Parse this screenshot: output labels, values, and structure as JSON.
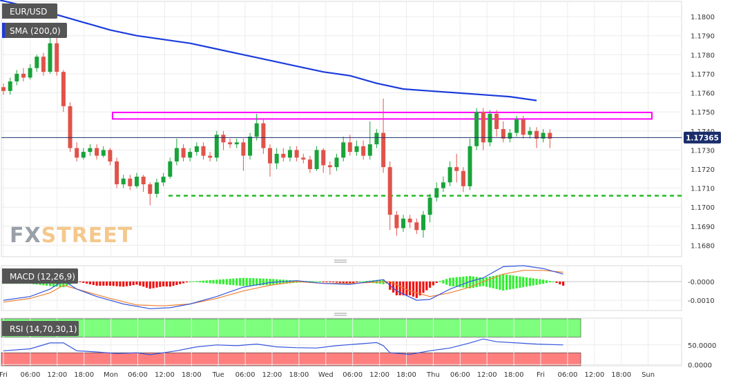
{
  "symbol_label": "EUR/USD",
  "colors": {
    "up": "#19a33a",
    "down": "#e0534a",
    "sma": "#1a3bdc",
    "resistance": "#ff00ff",
    "support": "#22bb22",
    "macd_line": "#3355dd",
    "signal_line": "#f08030",
    "hist_pos": "#33ee33",
    "hist_neg": "#ee1111",
    "rsi_line": "#3355dd",
    "rsi_overbought": "#7dff7d",
    "rsi_oversold": "#ff7f7f",
    "price_badge": "#1a2d6b"
  },
  "watermark": {
    "fx": "FX",
    "street": "STREET"
  },
  "chart_data": [
    {
      "name": "price",
      "type": "candlestick",
      "label": "SMA (200,0)",
      "y_ticks": [
        "1.1800",
        "1.1790",
        "1.1780",
        "1.1770",
        "1.1760",
        "1.1750",
        "1.1740",
        "1.1730",
        "1.1720",
        "1.1710",
        "1.1700",
        "1.1690",
        "1.1680"
      ],
      "ylim": [
        1.1674,
        1.1808
      ],
      "current_price": "1.17365",
      "current_price_value": 1.17365,
      "resistance_zone": [
        1.1747,
        1.1749
      ],
      "support_level": 1.1706,
      "x_ticks": [
        "Fri",
        "06:00",
        "12:00",
        "18:00",
        "Mon",
        "06:00",
        "12:00",
        "18:00",
        "Tue",
        "06:00",
        "12:00",
        "18:00",
        "Wed",
        "06:00",
        "12:00",
        "18:00",
        "Thu",
        "06:00",
        "12:00",
        "18:00",
        "Fri",
        "06:00",
        "12:00",
        "18:00",
        "Sun"
      ],
      "sma_200": [
        [
          -4,
          1.181
        ],
        [
          -1,
          1.1809
        ],
        [
          4,
          1.1805
        ],
        [
          8,
          1.1801
        ],
        [
          12,
          1.1797
        ],
        [
          16,
          1.1793
        ],
        [
          20,
          1.179
        ],
        [
          24,
          1.1788
        ],
        [
          28,
          1.1786
        ],
        [
          32,
          1.1783
        ],
        [
          36,
          1.178
        ],
        [
          40,
          1.1777
        ],
        [
          44,
          1.1774
        ],
        [
          48,
          1.1771
        ],
        [
          52,
          1.1769
        ],
        [
          56,
          1.1765
        ],
        [
          60,
          1.1762
        ],
        [
          64,
          1.1761
        ],
        [
          68,
          1.176
        ],
        [
          72,
          1.1759
        ],
        [
          76,
          1.1758
        ],
        [
          80,
          1.1756
        ]
      ],
      "candles": [
        [
          0,
          1.1763,
          1.1761,
          1.1765,
          1.1759
        ],
        [
          1,
          1.1761,
          1.1766,
          1.1768,
          1.1759
        ],
        [
          2,
          1.1766,
          1.177,
          1.1772,
          1.1764
        ],
        [
          3,
          1.177,
          1.1768,
          1.1773,
          1.1766
        ],
        [
          4,
          1.1768,
          1.1773,
          1.1775,
          1.1767
        ],
        [
          5,
          1.1773,
          1.1779,
          1.178,
          1.1771
        ],
        [
          6,
          1.1779,
          1.1771,
          1.1781,
          1.1769
        ],
        [
          7,
          1.1771,
          1.1786,
          1.1789,
          1.177
        ],
        [
          8,
          1.1786,
          1.1771,
          1.1791,
          1.1769
        ],
        [
          9,
          1.1771,
          1.1753,
          1.1772,
          1.175
        ],
        [
          10,
          1.1753,
          1.1731,
          1.1755,
          1.1729
        ],
        [
          11,
          1.1731,
          1.1726,
          1.1734,
          1.1724
        ],
        [
          12,
          1.1726,
          1.1729,
          1.1731,
          1.1725
        ],
        [
          13,
          1.1729,
          1.1731,
          1.1733,
          1.1727
        ],
        [
          14,
          1.1731,
          1.1727,
          1.1733,
          1.1725
        ],
        [
          15,
          1.1727,
          1.173,
          1.1732,
          1.1726
        ],
        [
          16,
          1.173,
          1.1724,
          1.1731,
          1.1722
        ],
        [
          17,
          1.1724,
          1.1712,
          1.1726,
          1.171
        ],
        [
          18,
          1.1712,
          1.1715,
          1.1717,
          1.171
        ],
        [
          19,
          1.1715,
          1.1711,
          1.1717,
          1.1709
        ],
        [
          20,
          1.1711,
          1.1716,
          1.1718,
          1.171
        ],
        [
          21,
          1.1716,
          1.1712,
          1.1717,
          1.1708
        ],
        [
          22,
          1.1712,
          1.1707,
          1.1713,
          1.1701
        ],
        [
          23,
          1.1707,
          1.1713,
          1.1715,
          1.1705
        ],
        [
          24,
          1.1713,
          1.1716,
          1.1718,
          1.1711
        ],
        [
          25,
          1.1716,
          1.1724,
          1.1726,
          1.1715
        ],
        [
          26,
          1.1724,
          1.1731,
          1.1736,
          1.1722
        ],
        [
          27,
          1.1731,
          1.1726,
          1.1733,
          1.1724
        ],
        [
          28,
          1.1726,
          1.1729,
          1.1731,
          1.1724
        ],
        [
          29,
          1.1729,
          1.1732,
          1.1734,
          1.1727
        ],
        [
          30,
          1.1732,
          1.1727,
          1.1734,
          1.1725
        ],
        [
          31,
          1.1727,
          1.1726,
          1.1729,
          1.1724
        ],
        [
          32,
          1.1726,
          1.1738,
          1.174,
          1.1724
        ],
        [
          33,
          1.1738,
          1.1734,
          1.174,
          1.173
        ],
        [
          34,
          1.1734,
          1.1733,
          1.1736,
          1.1731
        ],
        [
          35,
          1.1733,
          1.1734,
          1.1736,
          1.1731
        ],
        [
          36,
          1.1734,
          1.1727,
          1.1736,
          1.1719
        ],
        [
          37,
          1.1727,
          1.1737,
          1.1739,
          1.1725
        ],
        [
          38,
          1.1737,
          1.1744,
          1.1749,
          1.1735
        ],
        [
          39,
          1.1744,
          1.1731,
          1.1746,
          1.1728
        ],
        [
          40,
          1.1731,
          1.1723,
          1.1733,
          1.1716
        ],
        [
          41,
          1.1723,
          1.1728,
          1.1731,
          1.172
        ],
        [
          42,
          1.1728,
          1.1726,
          1.1731,
          1.1724
        ],
        [
          43,
          1.1726,
          1.173,
          1.1732,
          1.1724
        ],
        [
          44,
          1.173,
          1.1726,
          1.1732,
          1.1724
        ],
        [
          45,
          1.1726,
          1.1725,
          1.1728,
          1.1723
        ],
        [
          46,
          1.1725,
          1.172,
          1.1727,
          1.1718
        ],
        [
          47,
          1.172,
          1.173,
          1.1732,
          1.1719
        ],
        [
          48,
          1.173,
          1.1722,
          1.1731,
          1.1718
        ],
        [
          49,
          1.1722,
          1.1721,
          1.1724,
          1.1717
        ],
        [
          50,
          1.1721,
          1.1726,
          1.1728,
          1.1719
        ],
        [
          51,
          1.1726,
          1.1734,
          1.1737,
          1.1724
        ],
        [
          52,
          1.1734,
          1.1729,
          1.1738,
          1.1727
        ],
        [
          53,
          1.1729,
          1.1732,
          1.1735,
          1.1727
        ],
        [
          54,
          1.1732,
          1.1727,
          1.1735,
          1.1725
        ],
        [
          55,
          1.1727,
          1.1733,
          1.1745,
          1.1725
        ],
        [
          56,
          1.1733,
          1.1739,
          1.1741,
          1.1731
        ],
        [
          57,
          1.1739,
          1.1721,
          1.1757,
          1.1718
        ],
        [
          58,
          1.1721,
          1.1696,
          1.1724,
          1.1688
        ],
        [
          59,
          1.1696,
          1.1689,
          1.1698,
          1.1685
        ],
        [
          60,
          1.1689,
          1.1694,
          1.1696,
          1.1687
        ],
        [
          61,
          1.1694,
          1.1692,
          1.1696,
          1.1689
        ],
        [
          62,
          1.1692,
          1.1688,
          1.1694,
          1.1686
        ],
        [
          63,
          1.1688,
          1.1696,
          1.1698,
          1.1684
        ],
        [
          64,
          1.1696,
          1.1705,
          1.1707,
          1.1692
        ],
        [
          65,
          1.1705,
          1.171,
          1.1713,
          1.1703
        ],
        [
          66,
          1.171,
          1.1713,
          1.1716,
          1.1708
        ],
        [
          67,
          1.1713,
          1.1721,
          1.1724,
          1.1711
        ],
        [
          68,
          1.1721,
          1.1719,
          1.1728,
          1.1713
        ],
        [
          69,
          1.1719,
          1.1711,
          1.1721,
          1.1708
        ],
        [
          70,
          1.1711,
          1.1732,
          1.1736,
          1.1709
        ],
        [
          71,
          1.1732,
          1.175,
          1.1752,
          1.173
        ],
        [
          72,
          1.175,
          1.1734,
          1.1752,
          1.173
        ],
        [
          73,
          1.1734,
          1.1749,
          1.1751,
          1.1732
        ],
        [
          74,
          1.1749,
          1.1741,
          1.1751,
          1.1737
        ],
        [
          75,
          1.1741,
          1.1736,
          1.1745,
          1.1734
        ],
        [
          76,
          1.1736,
          1.1739,
          1.1741,
          1.1734
        ],
        [
          77,
          1.1739,
          1.1746,
          1.1748,
          1.1737
        ],
        [
          78,
          1.1746,
          1.1738,
          1.1748,
          1.1736
        ],
        [
          79,
          1.1738,
          1.174,
          1.1742,
          1.1736
        ],
        [
          80,
          1.174,
          1.1736,
          1.1742,
          1.1731
        ],
        [
          81,
          1.1736,
          1.1739,
          1.1741,
          1.1734
        ],
        [
          82,
          1.1739,
          1.1736,
          1.1741,
          1.1731
        ]
      ]
    },
    {
      "name": "macd",
      "type": "line+histogram",
      "label": "MACD (12,26,9)",
      "y_ticks": [
        "-0.0000",
        "-0.0010"
      ],
      "ylim": [
        -0.00155,
        0.00085
      ],
      "tick_values": [
        0.0,
        -0.001
      ],
      "macd_line": [
        [
          0,
          -0.001
        ],
        [
          4,
          -0.0008
        ],
        [
          7,
          -0.0004
        ],
        [
          9,
          5e-05
        ],
        [
          11,
          -0.0004
        ],
        [
          14,
          -0.0008
        ],
        [
          18,
          -0.0012
        ],
        [
          22,
          -0.00145
        ],
        [
          25,
          -0.0014
        ],
        [
          28,
          -0.0012
        ],
        [
          32,
          -0.0008
        ],
        [
          36,
          -0.0003
        ],
        [
          40,
          -5e-05
        ],
        [
          44,
          5e-05
        ],
        [
          48,
          -0.0001
        ],
        [
          52,
          -0.00015
        ],
        [
          55,
          0.0
        ],
        [
          57,
          0.0001
        ],
        [
          59,
          -0.0005
        ],
        [
          62,
          -0.001
        ],
        [
          64,
          -0.00095
        ],
        [
          67,
          -0.0004
        ],
        [
          70,
          0.0
        ],
        [
          72,
          0.0002
        ],
        [
          75,
          0.0008
        ],
        [
          78,
          0.00085
        ],
        [
          81,
          0.0007
        ],
        [
          84,
          0.0004
        ]
      ],
      "signal_line": [
        [
          0,
          -0.0011
        ],
        [
          4,
          -0.0009
        ],
        [
          7,
          -0.0006
        ],
        [
          9,
          -0.0002
        ],
        [
          12,
          -0.0005
        ],
        [
          16,
          -0.0009
        ],
        [
          20,
          -0.00125
        ],
        [
          24,
          -0.0013
        ],
        [
          28,
          -0.0012
        ],
        [
          32,
          -0.0009
        ],
        [
          36,
          -0.0005
        ],
        [
          40,
          -0.0002
        ],
        [
          44,
          0.0
        ],
        [
          48,
          -0.0001
        ],
        [
          52,
          -0.0001
        ],
        [
          55,
          -5e-05
        ],
        [
          58,
          0.0
        ],
        [
          61,
          -0.0005
        ],
        [
          64,
          -0.0008
        ],
        [
          67,
          -0.0006
        ],
        [
          70,
          -0.0003
        ],
        [
          72,
          0.0
        ],
        [
          75,
          0.0004
        ],
        [
          78,
          0.0006
        ],
        [
          81,
          0.0006
        ],
        [
          84,
          0.0005
        ]
      ],
      "histogram_pos_ranges": [
        [
          -2,
          9
        ],
        [
          21,
          55
        ],
        [
          63,
          79
        ]
      ],
      "histogram_neg_ranges": [
        [
          10,
          20
        ],
        [
          56,
          62
        ],
        [
          80,
          84
        ]
      ]
    },
    {
      "name": "rsi",
      "type": "line",
      "label": "RSI (14,70,30,1)",
      "y_ticks": [
        "50.0000",
        "0.0000"
      ],
      "ylim": [
        -3,
        118
      ],
      "tick_values": [
        50,
        0
      ],
      "overbought": 70,
      "oversold": 30,
      "values": [
        [
          0,
          35
        ],
        [
          4,
          40
        ],
        [
          7,
          55
        ],
        [
          9,
          55
        ],
        [
          11,
          35
        ],
        [
          14,
          32
        ],
        [
          17,
          28
        ],
        [
          20,
          30
        ],
        [
          22,
          25
        ],
        [
          24,
          30
        ],
        [
          26,
          35
        ],
        [
          29,
          45
        ],
        [
          32,
          50
        ],
        [
          35,
          48
        ],
        [
          38,
          52
        ],
        [
          41,
          45
        ],
        [
          44,
          43
        ],
        [
          47,
          42
        ],
        [
          50,
          48
        ],
        [
          53,
          52
        ],
        [
          56,
          56
        ],
        [
          57,
          48
        ],
        [
          58,
          30
        ],
        [
          61,
          26
        ],
        [
          64,
          35
        ],
        [
          67,
          42
        ],
        [
          70,
          55
        ],
        [
          72,
          65
        ],
        [
          74,
          58
        ],
        [
          77,
          55
        ],
        [
          80,
          52
        ],
        [
          84,
          50
        ]
      ]
    }
  ]
}
